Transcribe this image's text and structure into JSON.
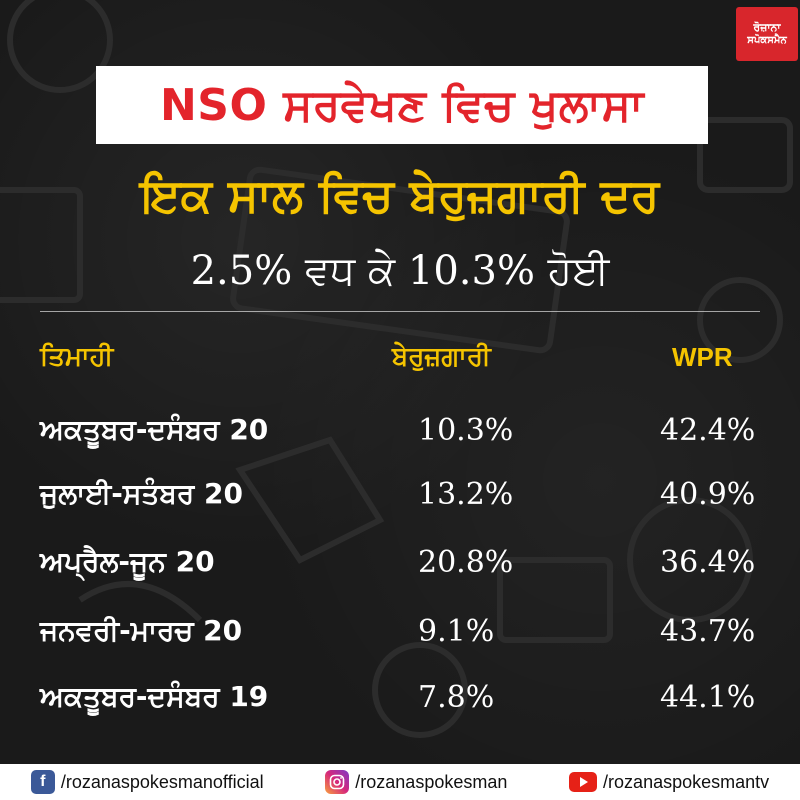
{
  "logo": {
    "line1": "ਰੋਜ਼ਾਨਾ",
    "line2": "ਸਪੋਕਸਮੈਨ"
  },
  "headline": "NSO ਸਰਵੇਖਣ ਵਿਚ ਖੁਲਾਸਾ",
  "subheadline1": "ਇਕ ਸਾਲ ਵਿਚ ਬੇਰੁਜ਼ਗਾਰੀ ਦਰ",
  "subheadline2": "2.5% ਵਧ ਕੇ 10.3% ਹੋਈ",
  "table": {
    "headers": {
      "quarter": "ਤਿਮਾਹੀ",
      "unemployment": "ਬੇਰੁਜ਼ਗਾਰੀ",
      "wpr": "WPR"
    },
    "rows": [
      {
        "quarter": "ਅਕਤੂਬਰ-ਦਸੰਬਰ 20",
        "unemployment": "10.3%",
        "wpr": "42.4%"
      },
      {
        "quarter": "ਜੁਲਾਈ-ਸਤੰਬਰ 20",
        "unemployment": "13.2%",
        "wpr": "40.9%"
      },
      {
        "quarter": "ਅਪ੍ਰੈਲ-ਜੂਨ 20",
        "unemployment": "20.8%",
        "wpr": "36.4%"
      },
      {
        "quarter": "ਜਨਵਰੀ-ਮਾਰਚ 20",
        "unemployment": "9.1%",
        "wpr": "43.7%"
      },
      {
        "quarter": "ਅਕਤੂਬਰ-ਦਸੰਬਰ 19",
        "unemployment": "7.8%",
        "wpr": "44.1%"
      }
    ]
  },
  "footer": {
    "facebook": {
      "icon": "facebook-icon",
      "handle": "/rozanaspokesmanofficial"
    },
    "instagram": {
      "icon": "instagram-icon",
      "handle": "/rozanaspokesman"
    },
    "youtube": {
      "icon": "youtube-icon",
      "handle": "/rozanaspokesmantv"
    }
  },
  "colors": {
    "headline_red": "#e3242b",
    "accent_yellow": "#f5c400",
    "logo_red": "#d8262c"
  }
}
